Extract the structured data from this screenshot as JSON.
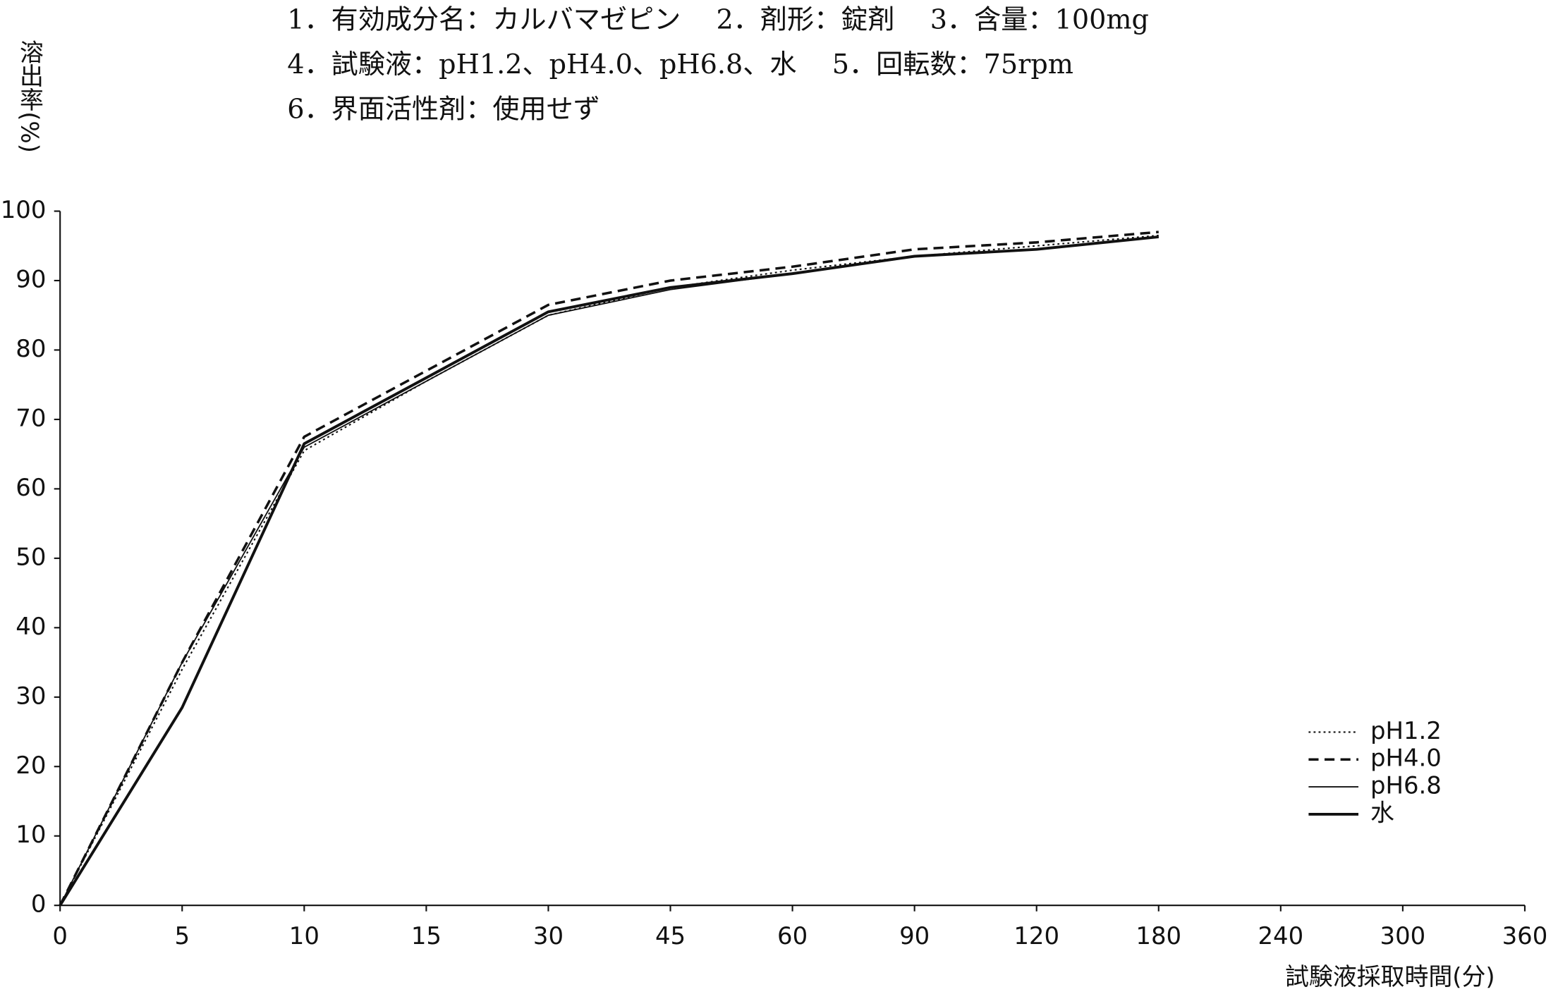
{
  "chart_data": {
    "type": "line",
    "title_lines": [
      "1．有効成分名：カルバマゼピン　 2．剤形：錠剤　 3．含量：100mg",
      "4．試験液：pH1.2、pH4.0、pH6.8、水　 5．回転数：75rpm",
      "6．界面活性剤：使用せず"
    ],
    "y_label": "溶出率(%)",
    "x_label": "試験液採取時間(分)",
    "categories": [
      "0",
      "5",
      "10",
      "15",
      "30",
      "45",
      "60",
      "90",
      "120",
      "180",
      "240",
      "300",
      "360"
    ],
    "series": [
      {
        "name": "pH1.2",
        "color": "#111111",
        "line_style": "dotted",
        "line_width": 1.5,
        "values": [
          0,
          34,
          65.5,
          75.5,
          85,
          89,
          91.5,
          93.5,
          95,
          96.5,
          null,
          null,
          null
        ]
      },
      {
        "name": "pH4.0",
        "color": "#111111",
        "line_style": "dashed",
        "line_width": 2.5,
        "values": [
          0,
          35,
          67.5,
          77,
          86.5,
          90,
          92,
          94.5,
          95.5,
          97,
          null,
          null,
          null
        ]
      },
      {
        "name": "pH6.8",
        "color": "#111111",
        "line_style": "solid",
        "line_width": 1.3,
        "values": [
          0,
          35,
          66,
          75.5,
          85,
          88.7,
          91,
          93.5,
          94.5,
          96.3,
          null,
          null,
          null
        ]
      },
      {
        "name": "水",
        "color": "#111111",
        "line_style": "solid",
        "line_width": 2.8,
        "values": [
          0,
          28.5,
          66.5,
          76,
          85.5,
          89,
          91,
          93.5,
          94.5,
          96.3,
          null,
          null,
          null
        ]
      }
    ],
    "ylim": [
      0,
      100
    ],
    "yticks": [
      0,
      10,
      20,
      30,
      40,
      50,
      60,
      70,
      80,
      90,
      100
    ],
    "grid": false,
    "legend": "lower right"
  }
}
